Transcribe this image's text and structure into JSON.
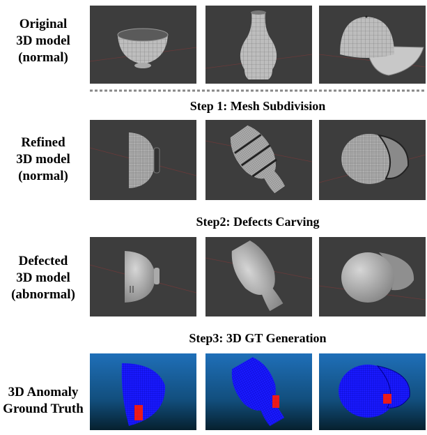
{
  "rows": [
    {
      "label_lines": [
        "Original",
        "3D model",
        "(normal)"
      ]
    },
    {
      "label_lines": [
        "Refined",
        "3D model",
        "(normal)"
      ]
    },
    {
      "label_lines": [
        "Defected",
        "3D model",
        "(abnormal)"
      ]
    },
    {
      "label_lines": [
        "3D Anomaly",
        "Ground Truth"
      ]
    }
  ],
  "steps": [
    "Step 1: Mesh Subdivision",
    "Step2: Defects Carving",
    "Step3: 3D GT Generation"
  ]
}
